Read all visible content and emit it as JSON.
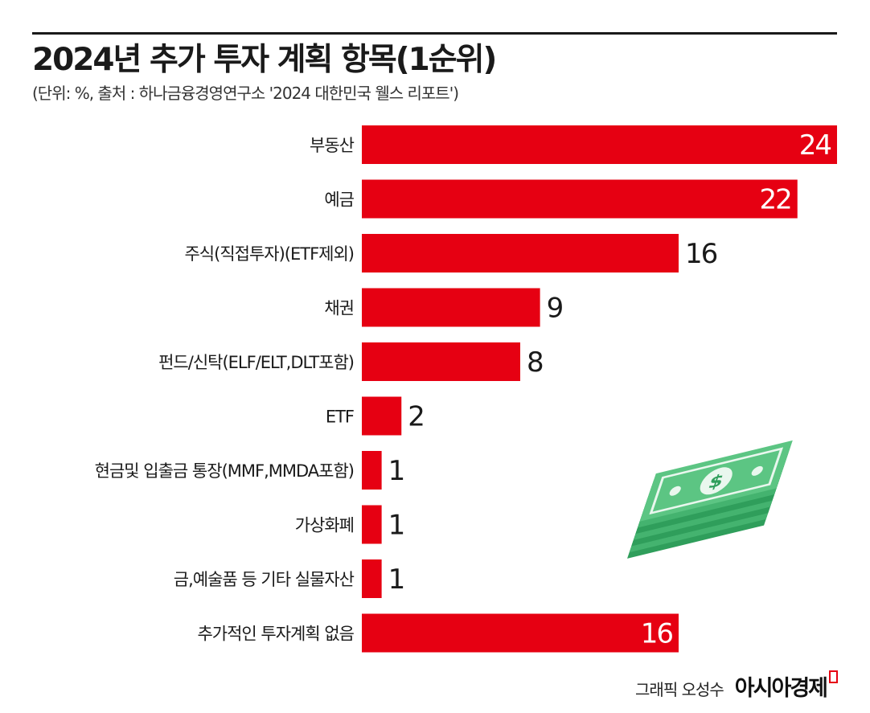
{
  "header": {
    "title": "2024년 추가 투자 계획 항목(1순위)",
    "subtitle": "(단위: %, 출처 : 하나금융경영연구소 '2024 대한민국 웰스 리포트')"
  },
  "footer": {
    "credit": "그래픽 오성수",
    "brand": "아시아경제"
  },
  "colors": {
    "bar": "#e60012",
    "text": "#1a1a1a",
    "inner_label": "#ffffff"
  },
  "icons": {
    "illustration": "money-stack-icon"
  },
  "chart_data": {
    "type": "bar",
    "orientation": "horizontal",
    "title": "2024년 추가 투자 계획 항목(1순위)",
    "subtitle": "(단위: %, 출처 : 하나금융경영연구소 '2024 대한민국 웰스 리포트')",
    "categories": [
      "부동산",
      "예금",
      "주식(직접투자)(ETF제외)",
      "채권",
      "펀드/신탁(ELF/ELT,DLT포함)",
      "ETF",
      "현금및 입출금 통장(MMF,MMDA포함)",
      "가상화폐",
      "금,예술품 등 기타 실물자산",
      "추가적인 투자계획 없음"
    ],
    "values": [
      24,
      22,
      16,
      9,
      8,
      2,
      1,
      1,
      1,
      16
    ],
    "label_inside": [
      true,
      true,
      false,
      false,
      false,
      false,
      false,
      false,
      false,
      true
    ],
    "xlim": [
      0,
      24
    ],
    "grid": false,
    "legend": "none"
  }
}
